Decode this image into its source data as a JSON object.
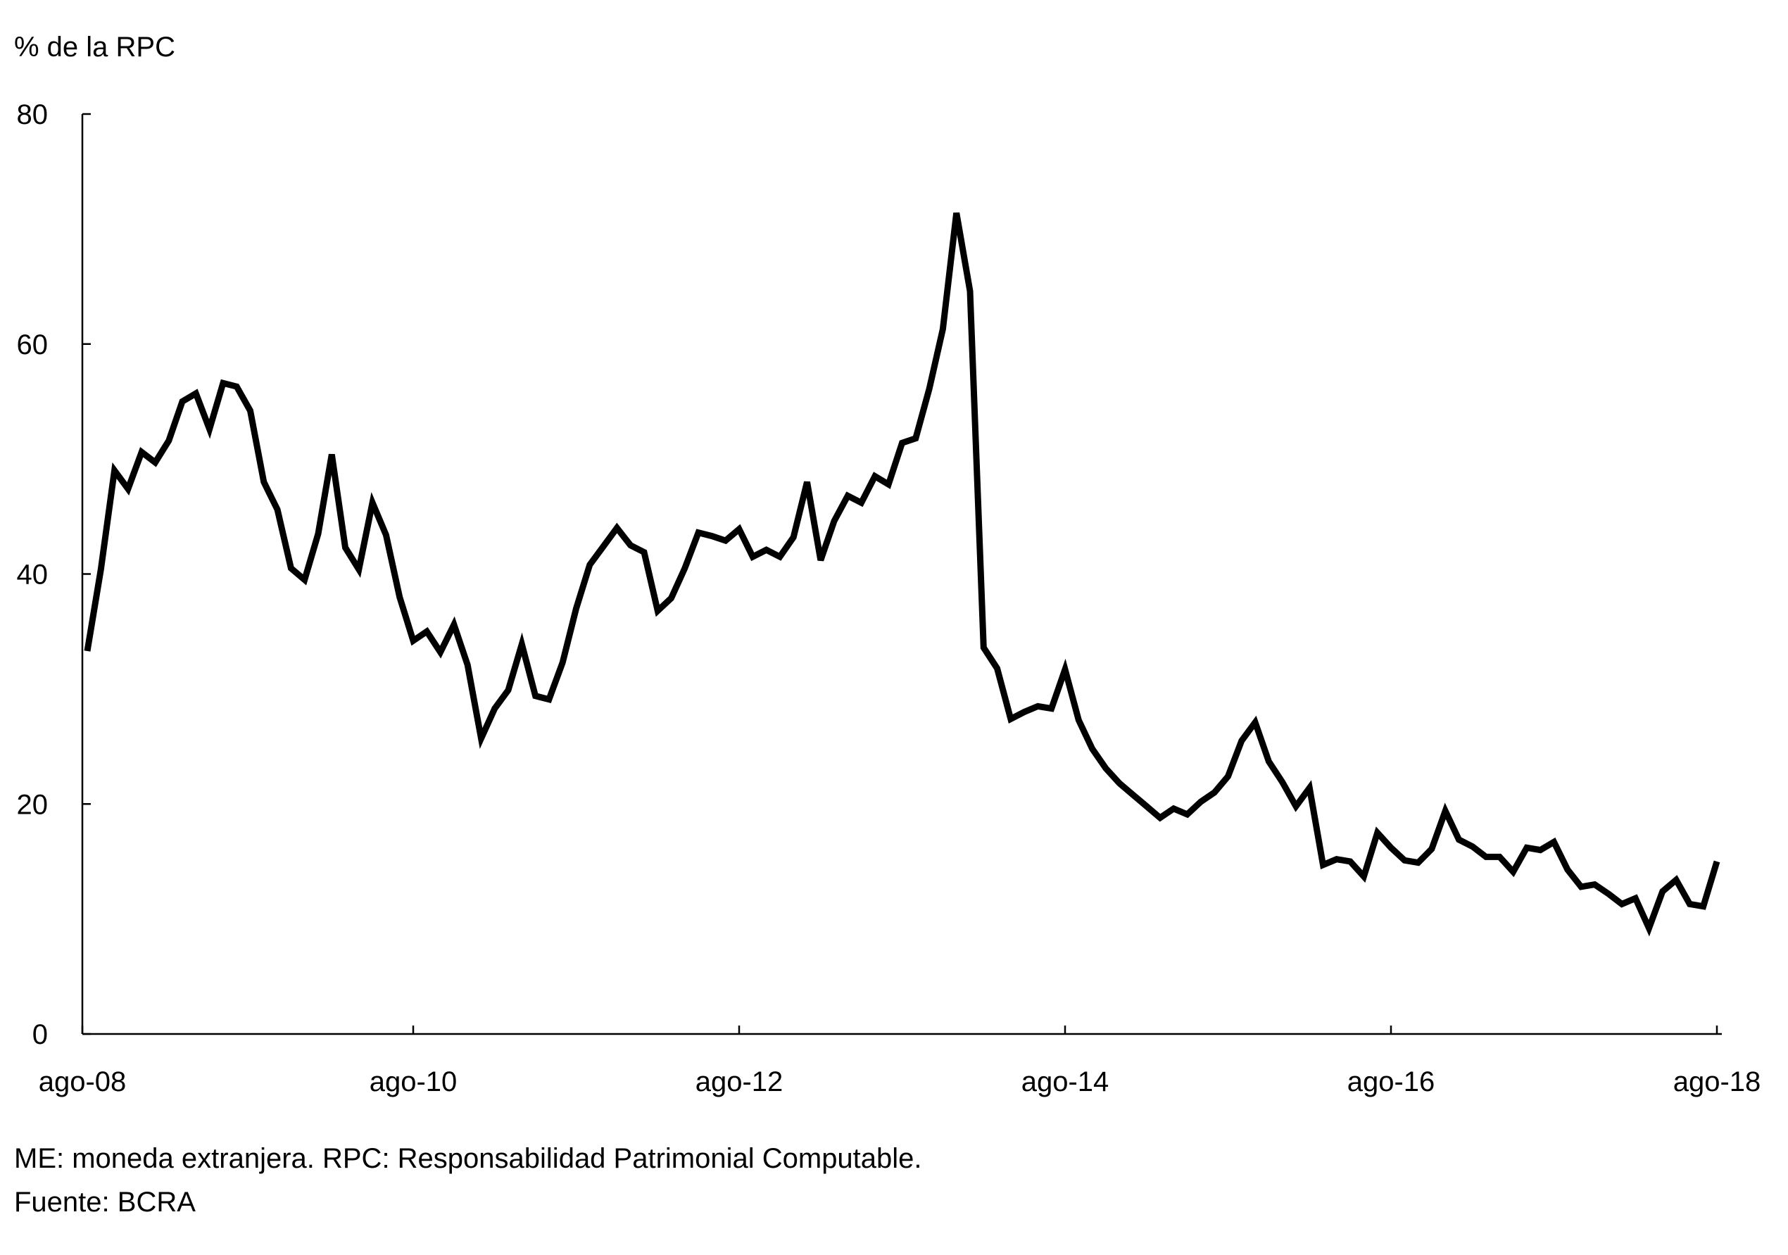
{
  "chart_data": {
    "type": "line",
    "ylabel": "% de la RPC",
    "ylim": [
      0,
      80
    ],
    "y_ticks": [
      "0",
      "20",
      "40",
      "60",
      "80"
    ],
    "x_ticks": [
      "ago-08",
      "ago-10",
      "ago-12",
      "ago-14",
      "ago-16",
      "ago-18"
    ],
    "x_start": "2008-08",
    "x_end": "2018-09",
    "line_color": "#000000",
    "series": [
      {
        "values": [
          33.3,
          40.4,
          49.0,
          47.4,
          50.6,
          49.7,
          51.6,
          55.0,
          55.7,
          52.6,
          56.6,
          56.3,
          54.2,
          48.0,
          45.6,
          40.5,
          39.5,
          43.5,
          50.4,
          42.3,
          40.4,
          46.2,
          43.4,
          38.0,
          34.2,
          35.0,
          33.2,
          35.6,
          32.1,
          25.7,
          28.3,
          29.9,
          33.9,
          29.4,
          29.1,
          32.3,
          37.0,
          40.8,
          42.4,
          44.0,
          42.5,
          41.9,
          36.8,
          37.9,
          40.5,
          43.6,
          43.3,
          42.9,
          43.9,
          41.5,
          42.1,
          41.5,
          43.2,
          48.0,
          41.2,
          44.6,
          46.8,
          46.2,
          48.5,
          47.8,
          51.4,
          51.8,
          56.1,
          61.3,
          71.4,
          64.6,
          33.6,
          31.8,
          27.4,
          28.0,
          28.5,
          28.3,
          31.7,
          27.3,
          24.8,
          23.1,
          21.8,
          20.8,
          19.8,
          18.8,
          19.6,
          19.1,
          20.2,
          21.0,
          22.4,
          25.5,
          27.1,
          23.7,
          21.9,
          19.8,
          21.4,
          14.7,
          15.2,
          15.0,
          13.7,
          17.5,
          16.2,
          15.1,
          14.9,
          16.1,
          19.4,
          16.9,
          16.3,
          15.4,
          15.4,
          14.1,
          16.2,
          16.0,
          16.7,
          14.3,
          12.8,
          13.0,
          12.2,
          11.3,
          11.8,
          9.2,
          12.4,
          13.4,
          11.3,
          11.1,
          15.0
        ]
      }
    ]
  },
  "footnotes": {
    "line1": "ME: moneda extranjera. RPC: Responsabilidad Patrimonial Computable.",
    "line2": "Fuente: BCRA"
  }
}
